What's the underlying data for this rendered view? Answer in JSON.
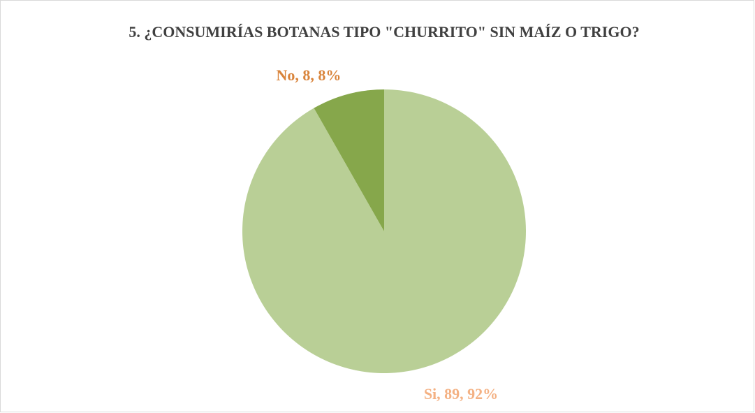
{
  "chart_data": {
    "type": "pie",
    "title": "5. ¿CONSUMIRÍAS BOTANAS TIPO \"CHURRITO\" SIN MAÍZ O TRIGO?",
    "categories": [
      "Si",
      "No"
    ],
    "values": [
      89,
      8
    ],
    "value_labels": [
      "Si, 89, 92%",
      "No, 8, 8%"
    ],
    "colors": [
      "#b9cf96",
      "#86a74b"
    ],
    "label_colors": [
      "#f4b183",
      "#d9843b"
    ]
  }
}
